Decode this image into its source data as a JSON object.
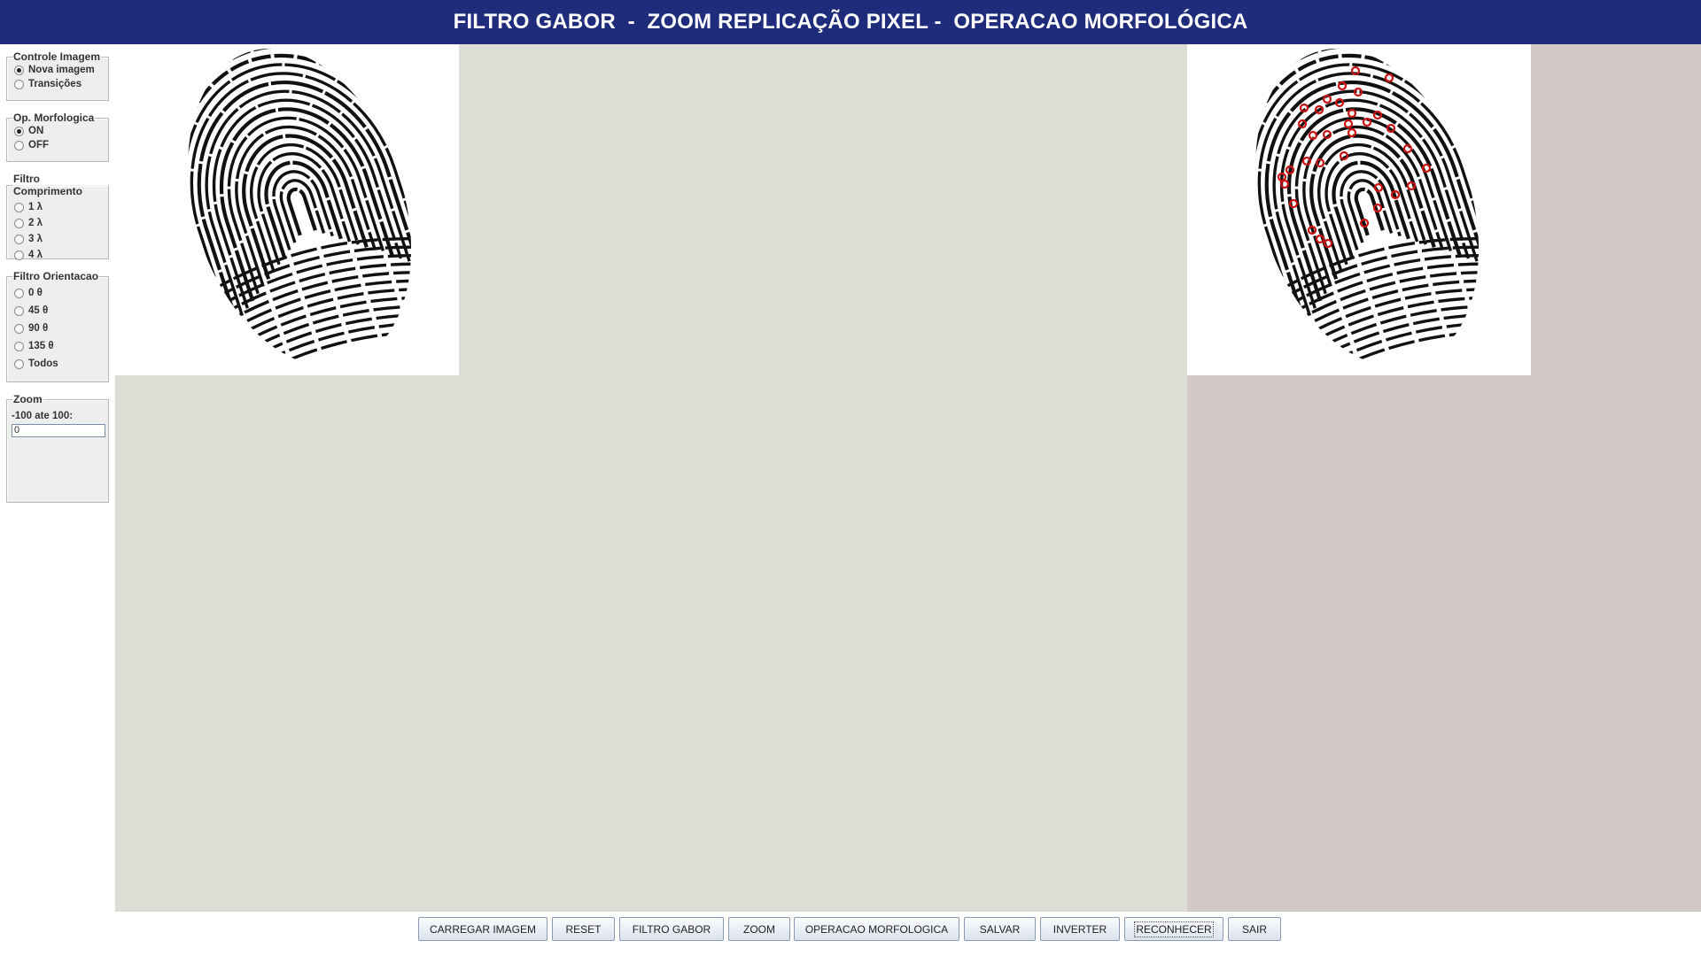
{
  "title": "FILTRO GABOR  -  ZOOM REPLICAÇÃO PIXEL -  OPERACAO MORFOLÓGICA",
  "colors": {
    "title_bar": "#1f2b7b",
    "center_bg": "#dddcd5",
    "right_bg": "#d3c9c8",
    "minutia": "#cc1111"
  },
  "controls": {
    "controle_imagem": {
      "legend": "Controle Imagem",
      "options": [
        {
          "label": "Nova imagem",
          "selected": true
        },
        {
          "label": "Transições",
          "selected": false
        }
      ]
    },
    "op_morfologica": {
      "legend": "Op. Morfologica",
      "options": [
        {
          "label": "ON",
          "selected": true
        },
        {
          "label": "OFF",
          "selected": false
        }
      ]
    },
    "filtro_comprimento": {
      "legend": "Filtro Comprimento",
      "options": [
        {
          "label": "1 λ",
          "selected": false
        },
        {
          "label": "2 λ",
          "selected": false
        },
        {
          "label": "3 λ",
          "selected": false
        },
        {
          "label": "4 λ",
          "selected": false
        }
      ]
    },
    "filtro_orientacao": {
      "legend": "Filtro Orientacao",
      "options": [
        {
          "label": "0 θ",
          "selected": false
        },
        {
          "label": "45 θ",
          "selected": false
        },
        {
          "label": "90 θ",
          "selected": false
        },
        {
          "label": "135 θ",
          "selected": false
        },
        {
          "label": "Todos",
          "selected": false
        }
      ]
    },
    "zoom": {
      "legend": "Zoom",
      "label": "-100 ate 100:",
      "value": "0"
    }
  },
  "images": {
    "original": {
      "icon": "fingerprint-image"
    },
    "processed": {
      "icon": "fingerprint-minutiae-image",
      "minutiae_marker": "red-circle"
    }
  },
  "buttons": {
    "carregar": "CARREGAR IMAGEM",
    "reset": "RESET",
    "gabor": "FILTRO GABOR",
    "zoom": "ZOOM",
    "morfologica": "OPERACAO MORFOLOGICA",
    "salvar": "SALVAR",
    "inverter": "INVERTER",
    "reconhecer": "RECONHECER",
    "sair": "SAIR"
  }
}
